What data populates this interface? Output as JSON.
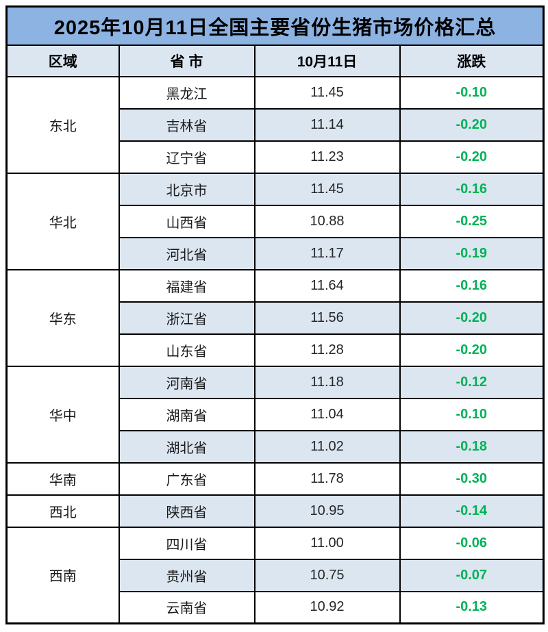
{
  "title": "2025年10月11日全国主要省份生猪市场价格汇总",
  "headers": [
    "区域",
    "省 市",
    "10月11日",
    "涨跌"
  ],
  "colors": {
    "title_bg": "#8db3e2",
    "header_bg": "#dce6f1",
    "stripe_bg": "#dce6f1",
    "change_green": "#00b256",
    "grid_border": "#000000"
  },
  "regions": [
    {
      "name": "东北",
      "rows": [
        {
          "province": "黑龙江",
          "price": "11.45",
          "change": "-0.10"
        },
        {
          "province": "吉林省",
          "price": "11.14",
          "change": "-0.20"
        },
        {
          "province": "辽宁省",
          "price": "11.23",
          "change": "-0.20"
        }
      ]
    },
    {
      "name": "华北",
      "rows": [
        {
          "province": "北京市",
          "price": "11.45",
          "change": "-0.16"
        },
        {
          "province": "山西省",
          "price": "10.88",
          "change": "-0.25"
        },
        {
          "province": "河北省",
          "price": "11.17",
          "change": "-0.19"
        }
      ]
    },
    {
      "name": "华东",
      "rows": [
        {
          "province": "福建省",
          "price": "11.64",
          "change": "-0.16"
        },
        {
          "province": "浙江省",
          "price": "11.56",
          "change": "-0.20"
        },
        {
          "province": "山东省",
          "price": "11.28",
          "change": "-0.20"
        }
      ]
    },
    {
      "name": "华中",
      "rows": [
        {
          "province": "河南省",
          "price": "11.18",
          "change": "-0.12"
        },
        {
          "province": "湖南省",
          "price": "11.04",
          "change": "-0.10"
        },
        {
          "province": "湖北省",
          "price": "11.02",
          "change": "-0.18"
        }
      ]
    },
    {
      "name": "华南",
      "rows": [
        {
          "province": "广东省",
          "price": "11.78",
          "change": "-0.30"
        }
      ]
    },
    {
      "name": "西北",
      "rows": [
        {
          "province": "陕西省",
          "price": "10.95",
          "change": "-0.14"
        }
      ]
    },
    {
      "name": "西南",
      "rows": [
        {
          "province": "四川省",
          "price": "11.00",
          "change": "-0.06"
        },
        {
          "province": "贵州省",
          "price": "10.75",
          "change": "-0.07"
        },
        {
          "province": "云南省",
          "price": "10.92",
          "change": "-0.13"
        }
      ]
    }
  ],
  "chart_data": {
    "type": "table",
    "title": "2025年10月11日全国主要省份生猪市场价格汇总",
    "columns": [
      "区域",
      "省 市",
      "10月11日",
      "涨跌"
    ],
    "rows": [
      [
        "东北",
        "黑龙江",
        "11.45",
        "-0.10"
      ],
      [
        "东北",
        "吉林省",
        "11.14",
        "-0.20"
      ],
      [
        "东北",
        "辽宁省",
        "11.23",
        "-0.20"
      ],
      [
        "华北",
        "北京市",
        "11.45",
        "-0.16"
      ],
      [
        "华北",
        "山西省",
        "10.88",
        "-0.25"
      ],
      [
        "华北",
        "河北省",
        "11.17",
        "-0.19"
      ],
      [
        "华东",
        "福建省",
        "11.64",
        "-0.16"
      ],
      [
        "华东",
        "浙江省",
        "11.56",
        "-0.20"
      ],
      [
        "华东",
        "山东省",
        "11.28",
        "-0.20"
      ],
      [
        "华中",
        "河南省",
        "11.18",
        "-0.12"
      ],
      [
        "华中",
        "湖南省",
        "11.04",
        "-0.10"
      ],
      [
        "华中",
        "湖北省",
        "11.02",
        "-0.18"
      ],
      [
        "华南",
        "广东省",
        "11.78",
        "-0.30"
      ],
      [
        "西北",
        "陕西省",
        "10.95",
        "-0.14"
      ],
      [
        "西南",
        "四川省",
        "11.00",
        "-0.06"
      ],
      [
        "西南",
        "贵州省",
        "10.75",
        "-0.07"
      ],
      [
        "西南",
        "云南省",
        "10.92",
        "-0.13"
      ]
    ]
  }
}
